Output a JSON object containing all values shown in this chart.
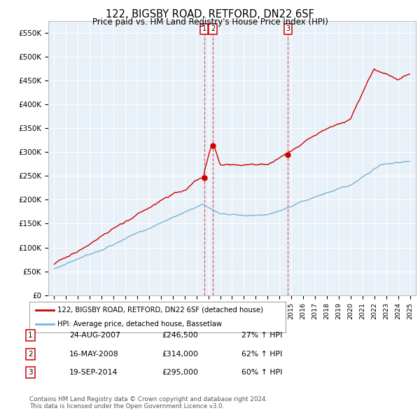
{
  "title": "122, BIGSBY ROAD, RETFORD, DN22 6SF",
  "subtitle": "Price paid vs. HM Land Registry's House Price Index (HPI)",
  "hpi_color": "#7ab3d4",
  "price_color": "#cc0000",
  "vline_color": "#cc0000",
  "ylim": [
    0,
    575000
  ],
  "yticks": [
    0,
    50000,
    100000,
    150000,
    200000,
    250000,
    300000,
    350000,
    400000,
    450000,
    500000,
    550000
  ],
  "ytick_labels": [
    "£0",
    "£50K",
    "£100K",
    "£150K",
    "£200K",
    "£250K",
    "£300K",
    "£350K",
    "£400K",
    "£450K",
    "£500K",
    "£550K"
  ],
  "sale1": {
    "date_num": 2007.65,
    "price": 246500,
    "label": "1"
  },
  "sale2": {
    "date_num": 2008.37,
    "price": 314000,
    "label": "2"
  },
  "sale3": {
    "date_num": 2014.72,
    "price": 295000,
    "label": "3"
  },
  "legend_price_label": "122, BIGSBY ROAD, RETFORD, DN22 6SF (detached house)",
  "legend_hpi_label": "HPI: Average price, detached house, Bassetlaw",
  "footer": "Contains HM Land Registry data © Crown copyright and database right 2024.\nThis data is licensed under the Open Government Licence v3.0.",
  "table_rows": [
    {
      "num": "1",
      "date": "24-AUG-2007",
      "price": "£246,500",
      "pct": "27% ↑ HPI"
    },
    {
      "num": "2",
      "date": "16-MAY-2008",
      "price": "£314,000",
      "pct": "62% ↑ HPI"
    },
    {
      "num": "3",
      "date": "19-SEP-2014",
      "price": "£295,000",
      "pct": "60% ↑ HPI"
    }
  ],
  "background_color": "#ffffff",
  "chart_bg_color": "#e8f0f8",
  "grid_color": "#ffffff"
}
